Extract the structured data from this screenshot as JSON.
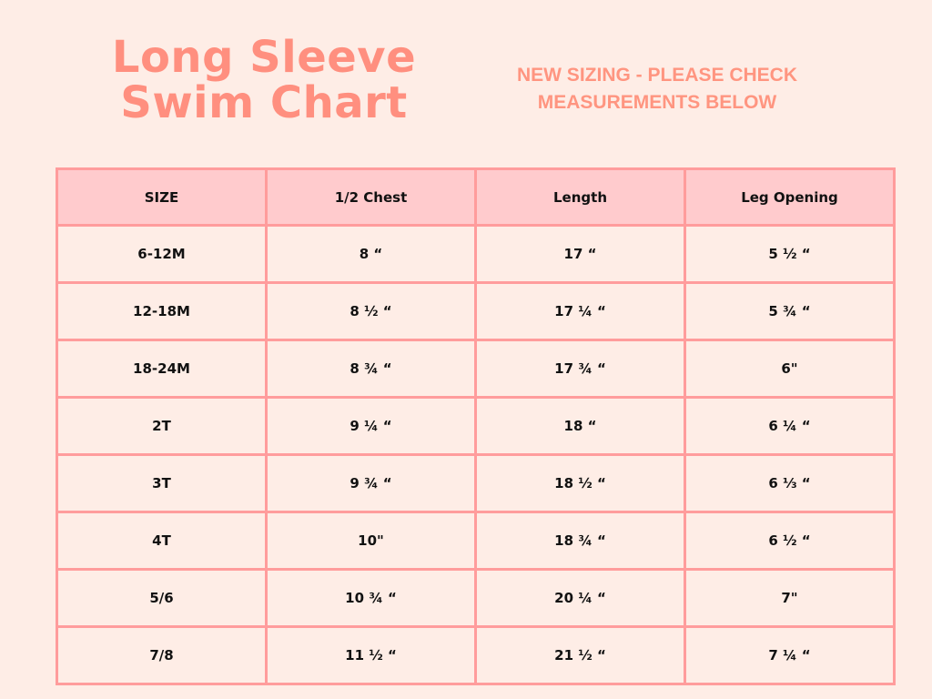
{
  "title_line1": "Long Sleeve",
  "title_line2": "Swim Chart",
  "notice_line1": "NEW SIZING - PLEASE CHECK",
  "notice_line2": "MEASUREMENTS BELOW",
  "colors": {
    "background": "#feede6",
    "header": "#ffcbcd",
    "border": "#ff9c9c",
    "accent": "#ff8f7f"
  },
  "table": {
    "headers": [
      "SIZE",
      "1/2 Chest",
      "Length",
      "Leg Opening"
    ],
    "rows": [
      [
        "6-12M",
        "8 “",
        "17 “",
        "5 ½ “"
      ],
      [
        "12-18M",
        "8 ½ “",
        "17 ¼ “",
        "5 ¾ “"
      ],
      [
        "18-24M",
        "8 ¾ “",
        "17 ¾ “",
        "6\""
      ],
      [
        "2T",
        "9 ¼ “",
        "18 “",
        "6 ¼ “"
      ],
      [
        "3T",
        "9 ¾ “",
        "18 ½ “",
        "6 ⅓ “"
      ],
      [
        "4T",
        "10\"",
        "18 ¾ “",
        "6 ½ “"
      ],
      [
        "5/6",
        "10 ¾ “",
        "20 ¼ “",
        "7\""
      ],
      [
        "7/8",
        "11 ½ “",
        "21 ½ “",
        "7 ¼ “"
      ]
    ]
  }
}
